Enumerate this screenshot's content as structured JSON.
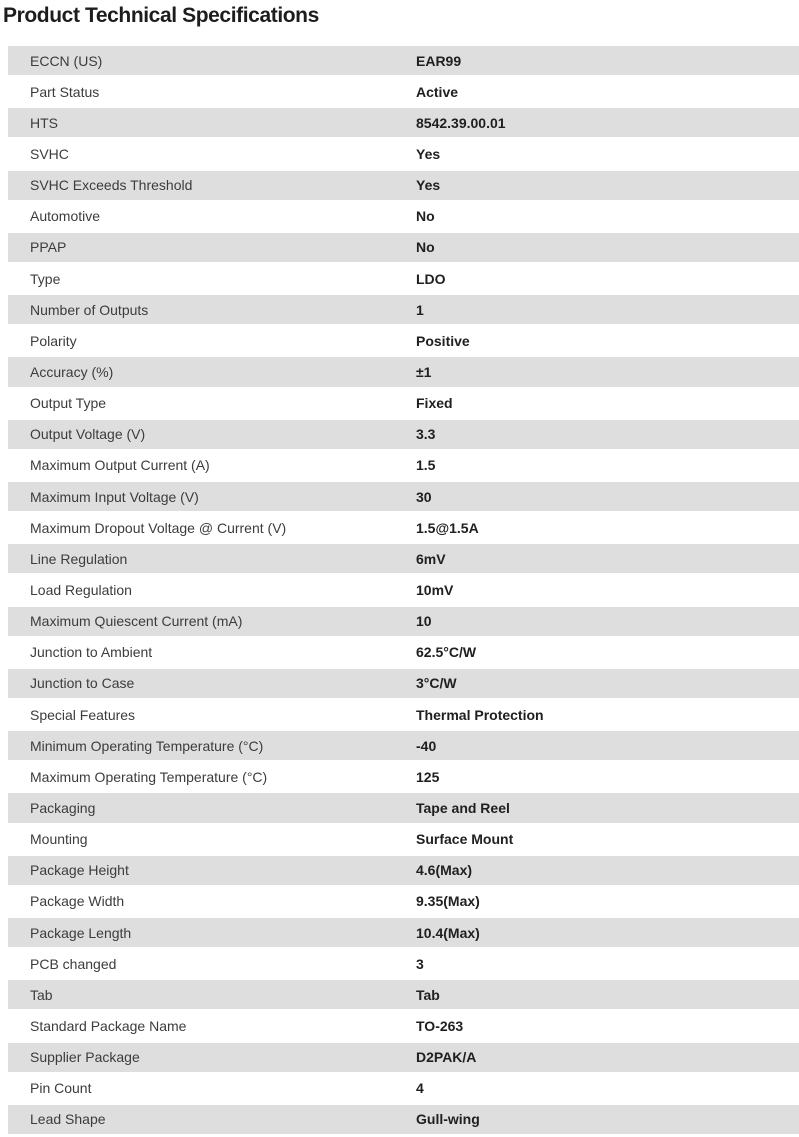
{
  "page": {
    "title": "Product Technical Specifications"
  },
  "colors": {
    "stripe": "#dedede",
    "title_text": "#1d1d20",
    "label_text": "#3c3c3c",
    "value_text": "#202022"
  },
  "spec_table": {
    "rows": [
      {
        "label": "ECCN (US)",
        "value": "EAR99"
      },
      {
        "label": "Part Status",
        "value": "Active"
      },
      {
        "label": "HTS",
        "value": "8542.39.00.01"
      },
      {
        "label": "SVHC",
        "value": "Yes"
      },
      {
        "label": "SVHC Exceeds Threshold",
        "value": "Yes"
      },
      {
        "label": "Automotive",
        "value": "No"
      },
      {
        "label": "PPAP",
        "value": "No"
      },
      {
        "label": "Type",
        "value": "LDO"
      },
      {
        "label": "Number of Outputs",
        "value": "1"
      },
      {
        "label": "Polarity",
        "value": "Positive"
      },
      {
        "label": "Accuracy (%)",
        "value": "±1"
      },
      {
        "label": "Output Type",
        "value": "Fixed"
      },
      {
        "label": "Output Voltage (V)",
        "value": "3.3"
      },
      {
        "label": "Maximum Output Current (A)",
        "value": "1.5"
      },
      {
        "label": "Maximum Input Voltage (V)",
        "value": "30"
      },
      {
        "label": "Maximum Dropout Voltage @ Current (V)",
        "value": "1.5@1.5A"
      },
      {
        "label": "Line Regulation",
        "value": "6mV"
      },
      {
        "label": "Load Regulation",
        "value": "10mV"
      },
      {
        "label": "Maximum Quiescent Current (mA)",
        "value": "10"
      },
      {
        "label": "Junction to Ambient",
        "value": "62.5°C/W"
      },
      {
        "label": "Junction to Case",
        "value": "3°C/W"
      },
      {
        "label": "Special Features",
        "value": "Thermal Protection"
      },
      {
        "label": "Minimum Operating Temperature (°C)",
        "value": "-40"
      },
      {
        "label": "Maximum Operating Temperature (°C)",
        "value": "125"
      },
      {
        "label": "Packaging",
        "value": "Tape and Reel"
      },
      {
        "label": "Mounting",
        "value": "Surface Mount"
      },
      {
        "label": "Package Height",
        "value": "4.6(Max)"
      },
      {
        "label": "Package Width",
        "value": "9.35(Max)"
      },
      {
        "label": "Package Length",
        "value": "10.4(Max)"
      },
      {
        "label": "PCB changed",
        "value": "3"
      },
      {
        "label": "Tab",
        "value": "Tab"
      },
      {
        "label": "Standard Package Name",
        "value": "TO-263"
      },
      {
        "label": "Supplier Package",
        "value": "D2PAK/A"
      },
      {
        "label": "Pin Count",
        "value": "4"
      },
      {
        "label": "Lead Shape",
        "value": "Gull-wing"
      }
    ]
  }
}
